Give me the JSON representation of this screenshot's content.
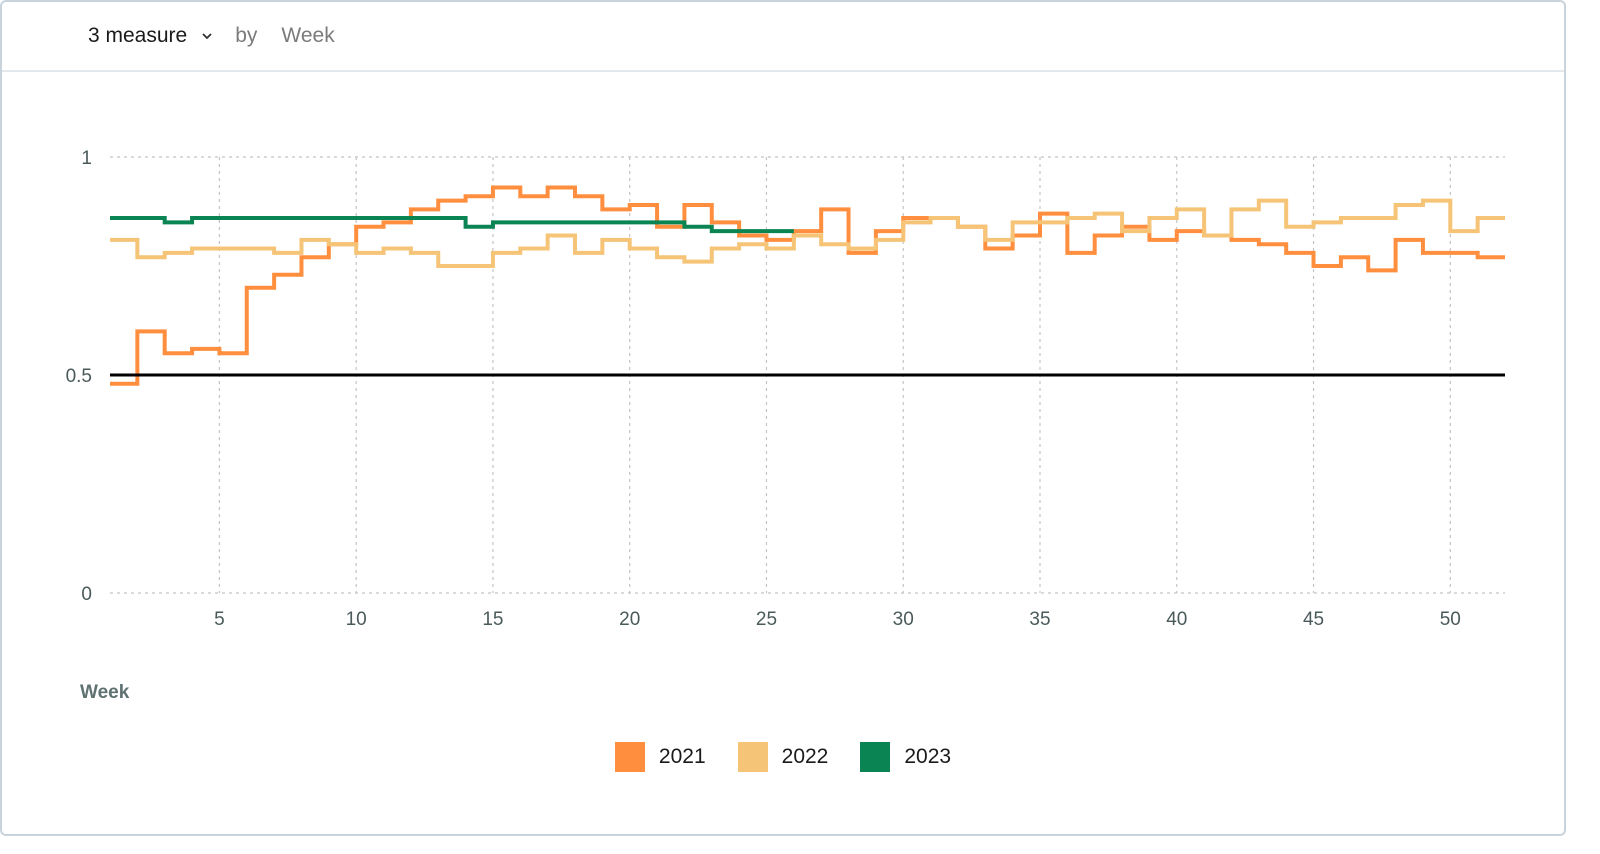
{
  "header": {
    "measure_label": "3 measure",
    "by_label": "by",
    "dimension_label": "Week"
  },
  "chart_data": {
    "type": "line",
    "step": true,
    "xlabel": "Week",
    "ylabel": "",
    "xlim": [
      1,
      52
    ],
    "ylim": [
      0,
      1
    ],
    "x_ticks": [
      5,
      10,
      15,
      20,
      25,
      30,
      35,
      40,
      45,
      50
    ],
    "y_ticks": [
      0,
      0.5,
      1
    ],
    "grid": true,
    "legend_position": "bottom",
    "reference_line": {
      "y": 0.5,
      "color": "#000000"
    },
    "series": [
      {
        "name": "2021",
        "color": "#ff8f3f",
        "values": [
          0.48,
          0.6,
          0.55,
          0.56,
          0.55,
          0.7,
          0.73,
          0.77,
          0.8,
          0.84,
          0.85,
          0.88,
          0.9,
          0.91,
          0.93,
          0.91,
          0.93,
          0.91,
          0.88,
          0.89,
          0.84,
          0.89,
          0.85,
          0.82,
          0.81,
          0.83,
          0.88,
          0.78,
          0.83,
          0.86,
          0.86,
          0.84,
          0.79,
          0.82,
          0.87,
          0.78,
          0.82,
          0.84,
          0.81,
          0.83,
          0.82,
          0.81,
          0.8,
          0.78,
          0.75,
          0.77,
          0.74,
          0.81,
          0.78,
          0.78,
          0.77,
          0.77
        ]
      },
      {
        "name": "2022",
        "color": "#f5c477",
        "values": [
          0.81,
          0.77,
          0.78,
          0.79,
          0.79,
          0.79,
          0.78,
          0.81,
          0.8,
          0.78,
          0.79,
          0.78,
          0.75,
          0.75,
          0.78,
          0.79,
          0.82,
          0.78,
          0.81,
          0.79,
          0.77,
          0.76,
          0.79,
          0.8,
          0.79,
          0.82,
          0.8,
          0.79,
          0.81,
          0.85,
          0.86,
          0.84,
          0.81,
          0.85,
          0.85,
          0.86,
          0.87,
          0.83,
          0.86,
          0.88,
          0.82,
          0.88,
          0.9,
          0.84,
          0.85,
          0.86,
          0.86,
          0.89,
          0.9,
          0.83,
          0.86,
          0.86
        ]
      },
      {
        "name": "2023",
        "color": "#0b8454",
        "values": [
          0.86,
          0.86,
          0.85,
          0.86,
          0.86,
          0.86,
          0.86,
          0.86,
          0.86,
          0.86,
          0.86,
          0.86,
          0.86,
          0.84,
          0.85,
          0.85,
          0.85,
          0.85,
          0.85,
          0.85,
          0.85,
          0.84,
          0.83,
          0.83,
          0.83
        ]
      }
    ]
  }
}
